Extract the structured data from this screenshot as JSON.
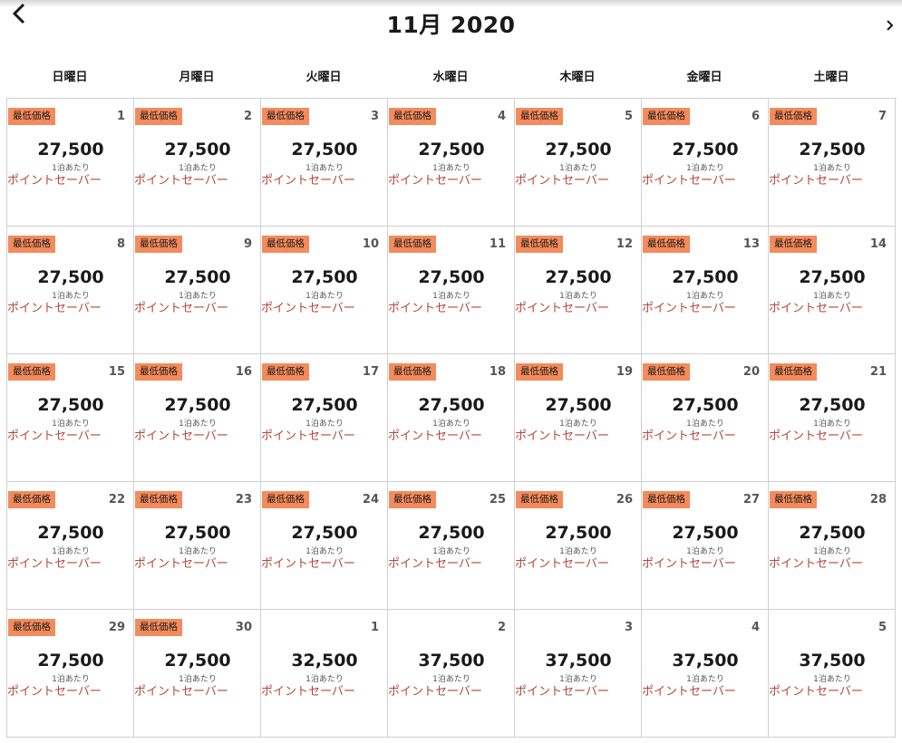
{
  "calendar": {
    "month_title": "11月 2020",
    "prev_icon": "chevron-left-icon",
    "next_icon": "chevron-right-icon",
    "weekdays": [
      "日曜日",
      "月曜日",
      "火曜日",
      "水曜日",
      "木曜日",
      "金曜日",
      "土曜日"
    ],
    "colors": {
      "badge": "#f48b5c",
      "rate_type": "#b5463a",
      "grid_line": "#cfcfcf"
    },
    "days": [
      {
        "day": "1",
        "price": "27,500",
        "per_night": "1泊あたり",
        "rate_type": "ポイントセーバー",
        "badge": "最低価格"
      },
      {
        "day": "2",
        "price": "27,500",
        "per_night": "1泊あたり",
        "rate_type": "ポイントセーバー",
        "badge": "最低価格"
      },
      {
        "day": "3",
        "price": "27,500",
        "per_night": "1泊あたり",
        "rate_type": "ポイントセーバー",
        "badge": "最低価格"
      },
      {
        "day": "4",
        "price": "27,500",
        "per_night": "1泊あたり",
        "rate_type": "ポイントセーバー",
        "badge": "最低価格"
      },
      {
        "day": "5",
        "price": "27,500",
        "per_night": "1泊あたり",
        "rate_type": "ポイントセーバー",
        "badge": "最低価格"
      },
      {
        "day": "6",
        "price": "27,500",
        "per_night": "1泊あたり",
        "rate_type": "ポイントセーバー",
        "badge": "最低価格"
      },
      {
        "day": "7",
        "price": "27,500",
        "per_night": "1泊あたり",
        "rate_type": "ポイントセーバー",
        "badge": "最低価格"
      },
      {
        "day": "8",
        "price": "27,500",
        "per_night": "1泊あたり",
        "rate_type": "ポイントセーバー",
        "badge": "最低価格"
      },
      {
        "day": "9",
        "price": "27,500",
        "per_night": "1泊あたり",
        "rate_type": "ポイントセーバー",
        "badge": "最低価格"
      },
      {
        "day": "10",
        "price": "27,500",
        "per_night": "1泊あたり",
        "rate_type": "ポイントセーバー",
        "badge": "最低価格"
      },
      {
        "day": "11",
        "price": "27,500",
        "per_night": "1泊あたり",
        "rate_type": "ポイントセーバー",
        "badge": "最低価格"
      },
      {
        "day": "12",
        "price": "27,500",
        "per_night": "1泊あたり",
        "rate_type": "ポイントセーバー",
        "badge": "最低価格"
      },
      {
        "day": "13",
        "price": "27,500",
        "per_night": "1泊あたり",
        "rate_type": "ポイントセーバー",
        "badge": "最低価格"
      },
      {
        "day": "14",
        "price": "27,500",
        "per_night": "1泊あたり",
        "rate_type": "ポイントセーバー",
        "badge": "最低価格"
      },
      {
        "day": "15",
        "price": "27,500",
        "per_night": "1泊あたり",
        "rate_type": "ポイントセーバー",
        "badge": "最低価格"
      },
      {
        "day": "16",
        "price": "27,500",
        "per_night": "1泊あたり",
        "rate_type": "ポイントセーバー",
        "badge": "最低価格"
      },
      {
        "day": "17",
        "price": "27,500",
        "per_night": "1泊あたり",
        "rate_type": "ポイントセーバー",
        "badge": "最低価格"
      },
      {
        "day": "18",
        "price": "27,500",
        "per_night": "1泊あたり",
        "rate_type": "ポイントセーバー",
        "badge": "最低価格"
      },
      {
        "day": "19",
        "price": "27,500",
        "per_night": "1泊あたり",
        "rate_type": "ポイントセーバー",
        "badge": "最低価格"
      },
      {
        "day": "20",
        "price": "27,500",
        "per_night": "1泊あたり",
        "rate_type": "ポイントセーバー",
        "badge": "最低価格"
      },
      {
        "day": "21",
        "price": "27,500",
        "per_night": "1泊あたり",
        "rate_type": "ポイントセーバー",
        "badge": "最低価格"
      },
      {
        "day": "22",
        "price": "27,500",
        "per_night": "1泊あたり",
        "rate_type": "ポイントセーバー",
        "badge": "最低価格"
      },
      {
        "day": "23",
        "price": "27,500",
        "per_night": "1泊あたり",
        "rate_type": "ポイントセーバー",
        "badge": "最低価格"
      },
      {
        "day": "24",
        "price": "27,500",
        "per_night": "1泊あたり",
        "rate_type": "ポイントセーバー",
        "badge": "最低価格"
      },
      {
        "day": "25",
        "price": "27,500",
        "per_night": "1泊あたり",
        "rate_type": "ポイントセーバー",
        "badge": "最低価格"
      },
      {
        "day": "26",
        "price": "27,500",
        "per_night": "1泊あたり",
        "rate_type": "ポイントセーバー",
        "badge": "最低価格"
      },
      {
        "day": "27",
        "price": "27,500",
        "per_night": "1泊あたり",
        "rate_type": "ポイントセーバー",
        "badge": "最低価格"
      },
      {
        "day": "28",
        "price": "27,500",
        "per_night": "1泊あたり",
        "rate_type": "ポイントセーバー",
        "badge": "最低価格"
      },
      {
        "day": "29",
        "price": "27,500",
        "per_night": "1泊あたり",
        "rate_type": "ポイントセーバー",
        "badge": "最低価格"
      },
      {
        "day": "30",
        "price": "27,500",
        "per_night": "1泊あたり",
        "rate_type": "ポイントセーバー",
        "badge": "最低価格"
      },
      {
        "day": "1",
        "price": "32,500",
        "per_night": "1泊あたり",
        "rate_type": "ポイントセーバー",
        "badge": null
      },
      {
        "day": "2",
        "price": "37,500",
        "per_night": "1泊あたり",
        "rate_type": "ポイントセーバー",
        "badge": null
      },
      {
        "day": "3",
        "price": "37,500",
        "per_night": "1泊あたり",
        "rate_type": "ポイントセーバー",
        "badge": null
      },
      {
        "day": "4",
        "price": "37,500",
        "per_night": "1泊あたり",
        "rate_type": "ポイントセーバー",
        "badge": null
      },
      {
        "day": "5",
        "price": "37,500",
        "per_night": "1泊あたり",
        "rate_type": "ポイントセーバー",
        "badge": null
      }
    ]
  }
}
